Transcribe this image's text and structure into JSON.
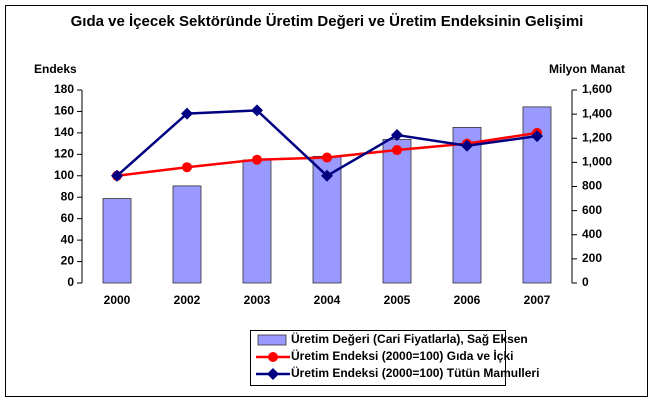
{
  "chart_data": {
    "type": "bar_line",
    "title": "Gıda ve İçecek Sektöründe Üretim Değeri ve Üretim Endeksinin Gelişimi",
    "y_label": "Endeks",
    "y2_label": "Milyon Manat",
    "categories": [
      "2000",
      "2002",
      "2003",
      "2004",
      "2005",
      "2006",
      "2007"
    ],
    "series": [
      {
        "name": "Üretim Değeri (Cari Fiyatlarla), Sağ Eksen",
        "type": "bar",
        "axis": "y2",
        "color": "#9999ff",
        "values": [
          700,
          805,
          1020,
          1050,
          1190,
          1290,
          1460
        ]
      },
      {
        "name": "Üretim Endeksi (2000=100) Gıda ve İçki",
        "type": "line",
        "marker": "circle",
        "color": "#ff0000",
        "values": [
          100,
          108,
          115,
          117,
          124,
          130,
          140
        ]
      },
      {
        "name": "Üretim Endeksi (2000=100) Tütün Mamulleri",
        "type": "line",
        "marker": "diamond",
        "color": "#000080",
        "values": [
          100,
          158,
          161,
          100,
          138,
          128,
          137
        ]
      }
    ],
    "ylim": [
      0,
      180
    ],
    "yticks": [
      0,
      20,
      40,
      60,
      80,
      100,
      120,
      140,
      160,
      180
    ],
    "y2lim": [
      0,
      1600
    ],
    "y2ticks": [
      0,
      200,
      400,
      600,
      800,
      {
        "value": 1000,
        "label": "1,000"
      },
      {
        "value": 1200,
        "label": "1,200"
      },
      {
        "value": 1400,
        "label": "1,400"
      },
      {
        "value": 1600,
        "label": "1,600"
      }
    ],
    "grid": false
  }
}
